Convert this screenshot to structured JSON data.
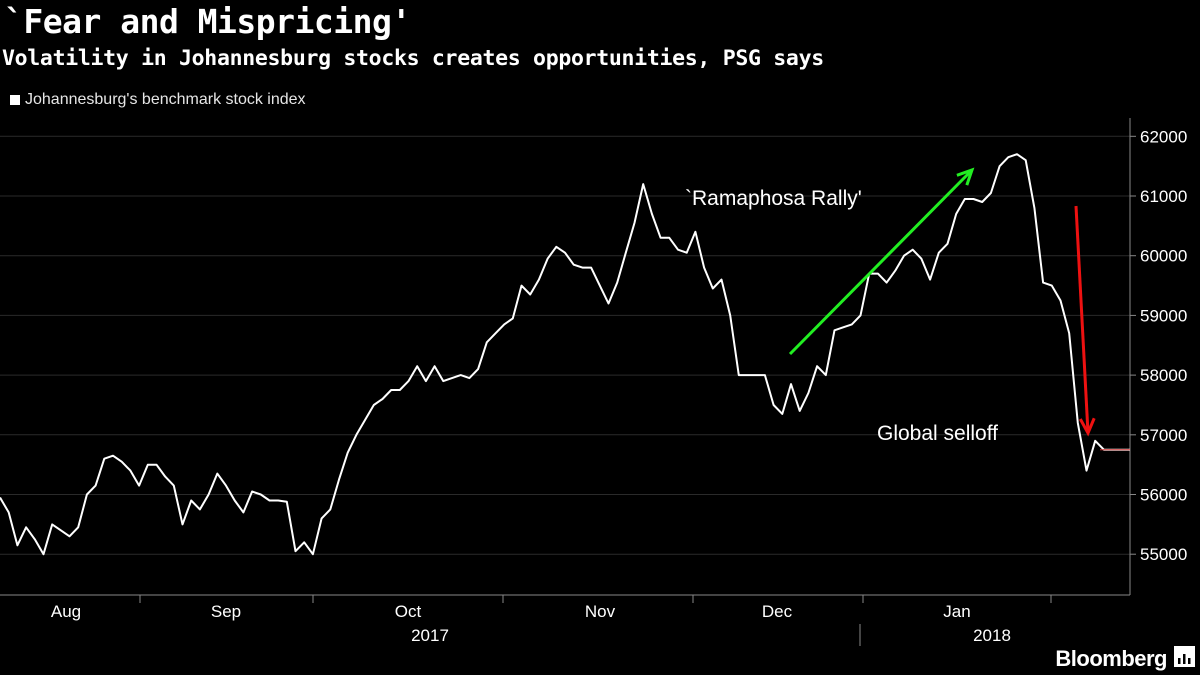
{
  "header": {
    "title": "`Fear and Mispricing'",
    "subtitle": "Volatility in Johannesburg stocks creates opportunities, PSG says"
  },
  "legend": {
    "label": "Johannesburg's benchmark stock index",
    "color": "#ffffff"
  },
  "brand": {
    "name": "Bloomberg",
    "icon": "bloomberg-terminal-icon"
  },
  "colors": {
    "background": "#000000",
    "line": "#ffffff",
    "rally_arrow": "#22ee22",
    "selloff_arrow": "#ee1111",
    "grid": "#2a2a2a"
  },
  "chart_data": {
    "type": "line",
    "title": "`Fear and Mispricing'",
    "subtitle": "Volatility in Johannesburg stocks creates opportunities, PSG says",
    "series": [
      {
        "name": "Johannesburg's benchmark stock index",
        "values": [
          55950,
          55700,
          55150,
          55450,
          55250,
          55000,
          55500,
          55400,
          55300,
          55450,
          56000,
          56150,
          56600,
          56650,
          56550,
          56400,
          56150,
          56500,
          56500,
          56300,
          56150,
          55500,
          55900,
          55750,
          56000,
          56350,
          56150,
          55900,
          55700,
          56050,
          56000,
          55900,
          55900,
          55880,
          55050,
          55200,
          55000,
          55600,
          55750,
          56250,
          56700,
          57000,
          57250,
          57500,
          57600,
          57750,
          57750,
          57900,
          58150,
          57900,
          58150,
          57900,
          57950,
          58000,
          57950,
          58100,
          58550,
          58700,
          58850,
          58950,
          59500,
          59350,
          59600,
          59950,
          60150,
          60050,
          59850,
          59800,
          59800,
          59500,
          59200,
          59550,
          60050,
          60550,
          61200,
          60700,
          60300,
          60300,
          60100,
          60050,
          60400,
          59800,
          59450,
          59600,
          59000,
          58000,
          58000,
          58000,
          58000,
          57500,
          57350,
          57850,
          57400,
          57700,
          58150,
          58000,
          58750,
          58800,
          58850,
          59000,
          59700,
          59700,
          59550,
          59750,
          60000,
          60100,
          59950,
          59600,
          60050,
          60200,
          60700,
          60950,
          60950,
          60900,
          61050,
          61500,
          61650,
          61700,
          61600,
          60800,
          59550,
          59500,
          59250,
          58700,
          57200,
          56400,
          56900,
          56750,
          56750,
          56750,
          56750
        ]
      }
    ],
    "x_axis": {
      "months": [
        "Aug",
        "Sep",
        "Oct",
        "Nov",
        "Dec",
        "Jan"
      ],
      "years": [
        "2017",
        "2018"
      ]
    },
    "y_axis": {
      "ticks": [
        55000,
        56000,
        57000,
        58000,
        59000,
        60000,
        61000,
        62000
      ],
      "tick_labels": [
        "55000",
        "56000",
        "57000",
        "58000",
        "59000",
        "60000",
        "61000",
        "62000"
      ],
      "ylim": [
        54300,
        62300
      ],
      "position": "right"
    },
    "annotations": [
      {
        "text": "`Ramaphosa Rally'",
        "kind": "arrow-up",
        "color": "#22ee22"
      },
      {
        "text": "Global selloff",
        "kind": "arrow-down",
        "color": "#ee1111"
      }
    ],
    "grid": true
  }
}
